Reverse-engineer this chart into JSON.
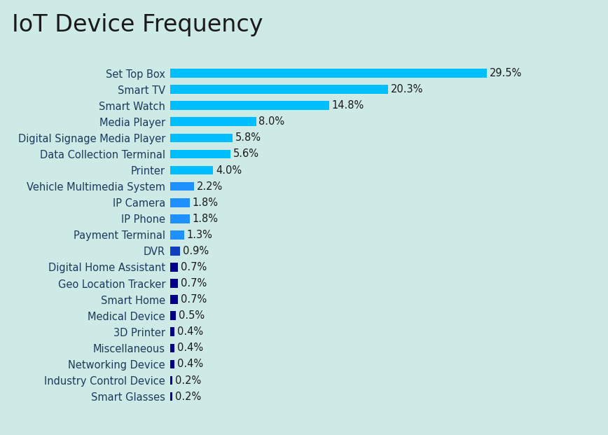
{
  "title": "IoT Device Frequency",
  "categories": [
    "Smart Glasses",
    "Industry Control Device",
    "Networking Device",
    "Miscellaneous",
    "3D Printer",
    "Medical Device",
    "Smart Home",
    "Geo Location Tracker",
    "Digital Home Assistant",
    "DVR",
    "Payment Terminal",
    "IP Phone",
    "IP Camera",
    "Vehicle Multimedia System",
    "Printer",
    "Data Collection Terminal",
    "Digital Signage Media Player",
    "Media Player",
    "Smart Watch",
    "Smart TV",
    "Set Top Box"
  ],
  "values": [
    0.2,
    0.2,
    0.4,
    0.4,
    0.4,
    0.5,
    0.7,
    0.7,
    0.7,
    0.9,
    1.3,
    1.8,
    1.8,
    2.2,
    4.0,
    5.6,
    5.8,
    8.0,
    14.8,
    20.3,
    29.5
  ],
  "color_high": "#00bfff",
  "color_mid_high": "#1eb8f0",
  "color_mid": "#1e90ff",
  "color_low": "#1040c0",
  "color_very_low": "#00008b",
  "background_color": "#ceeae6",
  "title_color": "#1a1a1a",
  "label_color": "#1a3a5c",
  "value_color": "#1a1a1a",
  "title_fontsize": 24,
  "label_fontsize": 10.5,
  "value_fontsize": 10.5
}
